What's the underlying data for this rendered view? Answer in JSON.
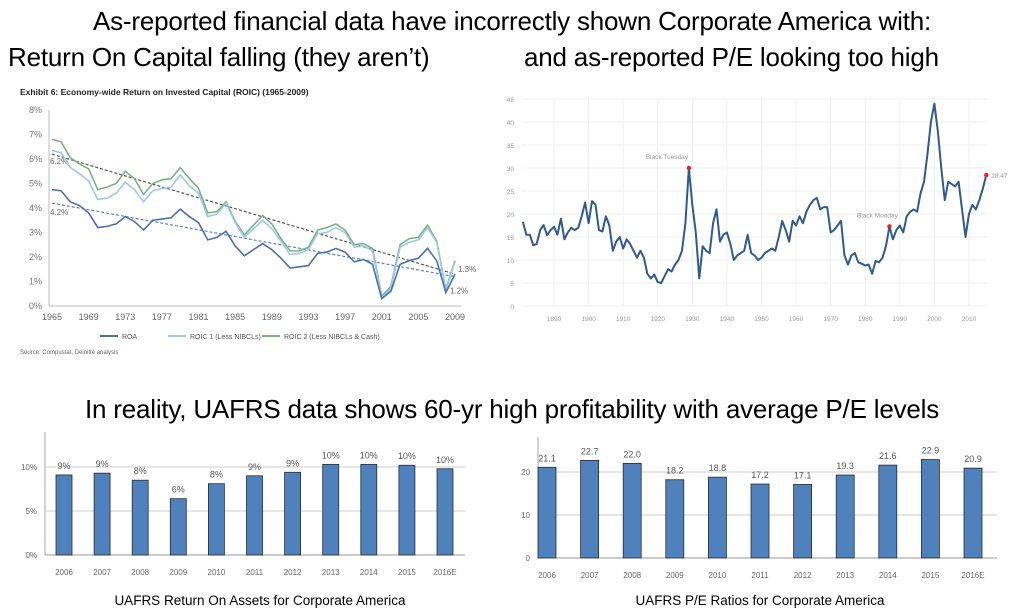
{
  "headlines": {
    "line1": "As-reported financial data have incorrectly shown Corporate America with:",
    "line2_left": "Return On Capital falling (they aren’t)",
    "line2_right": "and as-reported P/E looking too high",
    "middle": "In reality, UAFRS data shows 60-yr high profitability with average P/E levels"
  },
  "chart_data": [
    {
      "type": "line",
      "title": "Exhibit 6:  Economy-wide Return on Invested Capital (ROIC) (1965-2009)",
      "source": "Source: Compustat, Deloitte analysis",
      "x": [
        1965,
        1966,
        1967,
        1968,
        1969,
        1970,
        1971,
        1972,
        1973,
        1974,
        1975,
        1976,
        1977,
        1978,
        1979,
        1980,
        1981,
        1982,
        1983,
        1984,
        1985,
        1986,
        1987,
        1988,
        1989,
        1990,
        1991,
        1992,
        1993,
        1994,
        1995,
        1996,
        1997,
        1998,
        1999,
        2000,
        2001,
        2002,
        2003,
        2004,
        2005,
        2006,
        2007,
        2008,
        2009
      ],
      "xticks": [
        "1965",
        "1969",
        "1973",
        "1977",
        "1981",
        "1985",
        "1989",
        "1993",
        "1997",
        "2001",
        "2005",
        "2009"
      ],
      "yticks": [
        "0%",
        "1%",
        "2%",
        "3%",
        "4%",
        "5%",
        "6%",
        "7%",
        "8%"
      ],
      "ylim": [
        0,
        8
      ],
      "legend_position": "bottom",
      "series": [
        {
          "name": "ROA",
          "color": "#4a6fb3",
          "values": [
            4.75,
            4.7,
            4.25,
            4.1,
            3.8,
            3.2,
            3.25,
            3.35,
            3.65,
            3.45,
            3.1,
            3.5,
            3.55,
            3.6,
            3.95,
            3.65,
            3.4,
            2.7,
            2.8,
            3.05,
            2.45,
            2.05,
            2.3,
            2.55,
            2.3,
            1.95,
            1.55,
            1.6,
            1.65,
            2.15,
            2.2,
            2.35,
            2.2,
            1.8,
            1.9,
            1.7,
            0.3,
            0.6,
            1.7,
            1.85,
            1.95,
            2.35,
            1.85,
            0.55,
            1.3
          ]
        },
        {
          "name": "ROIC 1 (Less NIBCLs)",
          "color": "#9cc8ea",
          "values": [
            6.35,
            6.25,
            5.65,
            5.4,
            5.1,
            4.35,
            4.4,
            4.6,
            5.05,
            4.75,
            4.25,
            4.7,
            4.8,
            4.85,
            5.35,
            4.9,
            4.6,
            3.65,
            3.75,
            4.2,
            3.4,
            2.8,
            3.15,
            3.5,
            3.15,
            2.65,
            2.1,
            2.15,
            2.3,
            2.95,
            3.0,
            3.2,
            3.0,
            2.4,
            2.45,
            2.25,
            0.35,
            0.7,
            2.4,
            2.6,
            2.7,
            3.2,
            2.6,
            0.65,
            1.8
          ]
        },
        {
          "name": "ROIC 2 (Less NIBCLs & Cash)",
          "color": "#78b47c",
          "values": [
            6.8,
            6.7,
            6.05,
            5.8,
            5.6,
            4.75,
            4.85,
            5.0,
            5.5,
            5.2,
            4.55,
            5.0,
            5.15,
            5.2,
            5.65,
            5.2,
            4.8,
            3.8,
            3.85,
            4.25,
            3.45,
            2.9,
            3.3,
            3.7,
            3.35,
            2.75,
            2.25,
            2.25,
            2.4,
            3.1,
            3.2,
            3.35,
            3.1,
            2.5,
            2.55,
            2.35,
            0.4,
            0.8,
            2.5,
            2.75,
            2.8,
            3.3,
            2.65,
            0.7,
            1.85
          ]
        }
      ],
      "trendlines": [
        {
          "color": "#555555",
          "start": 6.2,
          "end": 1.3,
          "start_label": "6.2%",
          "end_label": "1.3%"
        },
        {
          "color": "#5a82c8",
          "start": 4.2,
          "end": 1.2,
          "start_label": "4.2%",
          "end_label": "1.2%"
        }
      ]
    },
    {
      "type": "line",
      "color": "#2f5a8e",
      "ylim": [
        0,
        45
      ],
      "yticks": [
        "0",
        "5",
        "10",
        "15",
        "20",
        "25",
        "30",
        "35",
        "40",
        "45"
      ],
      "xticks": [
        "1890",
        "1900",
        "1910",
        "1920",
        "1930",
        "1940",
        "1950",
        "1960",
        "1970",
        "1980",
        "1990",
        "2000",
        "2010"
      ],
      "grid": true,
      "x": [
        1881,
        1882,
        1883,
        1884,
        1885,
        1886,
        1887,
        1888,
        1889,
        1890,
        1891,
        1892,
        1893,
        1894,
        1895,
        1896,
        1897,
        1898,
        1899,
        1900,
        1901,
        1902,
        1903,
        1904,
        1905,
        1906,
        1907,
        1908,
        1909,
        1910,
        1911,
        1912,
        1913,
        1914,
        1915,
        1916,
        1917,
        1918,
        1919,
        1920,
        1921,
        1922,
        1923,
        1924,
        1925,
        1926,
        1927,
        1928,
        1929,
        1930,
        1931,
        1932,
        1933,
        1934,
        1935,
        1936,
        1937,
        1938,
        1939,
        1940,
        1941,
        1942,
        1943,
        1944,
        1945,
        1946,
        1947,
        1948,
        1949,
        1950,
        1951,
        1952,
        1953,
        1954,
        1955,
        1956,
        1957,
        1958,
        1959,
        1960,
        1961,
        1962,
        1963,
        1964,
        1965,
        1966,
        1967,
        1968,
        1969,
        1970,
        1971,
        1972,
        1973,
        1974,
        1975,
        1976,
        1977,
        1978,
        1979,
        1980,
        1981,
        1982,
        1983,
        1984,
        1985,
        1986,
        1987,
        1988,
        1989,
        1990,
        1991,
        1992,
        1993,
        1994,
        1995,
        1996,
        1997,
        1998,
        1999,
        2000,
        2001,
        2002,
        2003,
        2004,
        2005,
        2006,
        2007,
        2008,
        2009,
        2010,
        2011,
        2012,
        2013,
        2014,
        2015
      ],
      "values": [
        18.3,
        15.5,
        15.5,
        13.2,
        13.5,
        16.5,
        17.6,
        15.4,
        16.5,
        17.2,
        15.5,
        19,
        14.5,
        16,
        17,
        16.5,
        17,
        19.5,
        22.5,
        18,
        22.8,
        22,
        16.5,
        16.2,
        19.5,
        17.5,
        12,
        14,
        15,
        12.5,
        14.5,
        13.5,
        12,
        10.5,
        12,
        10.5,
        7,
        6,
        6.8,
        5.2,
        5,
        6.5,
        8,
        7.5,
        9,
        10,
        12,
        18,
        30,
        22,
        16,
        6,
        13,
        12,
        11.5,
        18,
        21,
        14,
        15.5,
        16,
        13.5,
        10,
        11,
        11.5,
        12,
        15.5,
        11.5,
        11,
        10,
        10.5,
        11.5,
        12,
        12.5,
        12,
        15,
        18.5,
        16.5,
        14,
        18.5,
        17.5,
        19.5,
        18,
        20.5,
        22,
        23,
        23.5,
        21,
        21.5,
        21.5,
        16,
        16.5,
        17.5,
        18.5,
        11,
        9,
        11,
        11.5,
        9.5,
        9.2,
        8.8,
        9,
        7,
        9.8,
        9.5,
        10.5,
        13,
        17.3,
        14.5,
        16.5,
        17.5,
        16,
        19.5,
        20.5,
        21,
        20.5,
        24.5,
        27,
        33,
        40,
        44,
        38,
        30,
        23,
        27,
        26.5,
        26,
        27,
        21,
        15,
        20,
        22,
        21,
        23,
        25.5,
        28.47
      ],
      "annotations": [
        {
          "label": "Black Tuesday",
          "x": 1929,
          "y": 30
        },
        {
          "label": "Black Monday",
          "x": 1987,
          "y": 17.3
        },
        {
          "label": "28.47",
          "x": 2015,
          "y": 28.47
        }
      ],
      "marker_color": "#ee1c25"
    },
    {
      "type": "bar",
      "title": "UAFRS Return On Assets for Corporate America",
      "categories": [
        "2006",
        "2007",
        "2008",
        "2009",
        "2010",
        "2011",
        "2012",
        "2013",
        "2014",
        "2015",
        "2016E"
      ],
      "values": [
        9.1,
        9.3,
        8.5,
        6.4,
        8.1,
        9.0,
        9.4,
        10.3,
        10.3,
        10.2,
        9.8
      ],
      "data_labels": [
        "9%",
        "9%",
        "8%",
        "6%",
        "8%",
        "9%",
        "9%",
        "10%",
        "10%",
        "10%",
        "10%"
      ],
      "yticks": [
        "0%",
        "5%",
        "10%"
      ],
      "ylim": [
        0,
        14
      ],
      "grid": true,
      "color": "#4f81bd"
    },
    {
      "type": "bar",
      "title": "UAFRS P/E Ratios for Corporate America",
      "categories": [
        "2006",
        "2007",
        "2008",
        "2009",
        "2010",
        "2011",
        "2012",
        "2013",
        "2014",
        "2015",
        "2016E"
      ],
      "values": [
        21.1,
        22.7,
        22.0,
        18.2,
        18.8,
        17.2,
        17.1,
        19.3,
        21.6,
        22.9,
        20.9
      ],
      "data_labels": [
        "21.1",
        "22.7",
        "22.0",
        "18.2",
        "18.8",
        "17.2",
        "17.1",
        "19.3",
        "21.6",
        "22.9",
        "20.9"
      ],
      "yticks": [
        "0",
        "10",
        "20"
      ],
      "ylim": [
        0,
        28
      ],
      "grid": true,
      "color": "#4f81bd"
    }
  ]
}
